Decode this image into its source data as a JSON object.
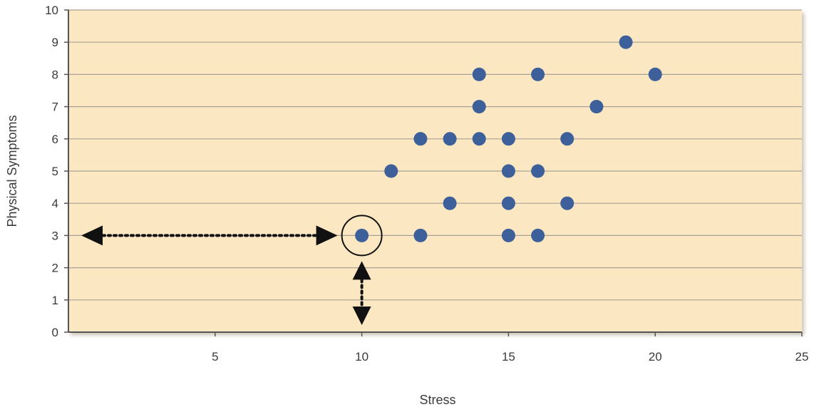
{
  "chart_data": {
    "type": "scatter",
    "title": "",
    "xlabel": "Stress",
    "ylabel": "Physical Symptoms",
    "xlim": [
      0,
      25
    ],
    "ylim": [
      0,
      10
    ],
    "x_ticks": [
      5,
      10,
      15,
      20,
      25
    ],
    "y_ticks": [
      0,
      1,
      2,
      3,
      4,
      5,
      6,
      7,
      8,
      9,
      10
    ],
    "grid": "horizontal",
    "background": "#fbe8c2",
    "point_color": "#3d5f9a",
    "points": [
      {
        "x": 10,
        "y": 3
      },
      {
        "x": 12,
        "y": 3
      },
      {
        "x": 15,
        "y": 3
      },
      {
        "x": 16,
        "y": 3
      },
      {
        "x": 13,
        "y": 4
      },
      {
        "x": 15,
        "y": 4
      },
      {
        "x": 17,
        "y": 4
      },
      {
        "x": 11,
        "y": 5
      },
      {
        "x": 15,
        "y": 5
      },
      {
        "x": 16,
        "y": 5
      },
      {
        "x": 12,
        "y": 6
      },
      {
        "x": 13,
        "y": 6
      },
      {
        "x": 14,
        "y": 6
      },
      {
        "x": 15,
        "y": 6
      },
      {
        "x": 17,
        "y": 6
      },
      {
        "x": 14,
        "y": 7
      },
      {
        "x": 18,
        "y": 7
      },
      {
        "x": 14,
        "y": 8
      },
      {
        "x": 16,
        "y": 8
      },
      {
        "x": 20,
        "y": 8
      },
      {
        "x": 19,
        "y": 9
      }
    ],
    "annotations": {
      "highlighted_point": {
        "x": 10,
        "y": 3
      },
      "horizontal_arrow": {
        "from": [
          0,
          3
        ],
        "to": [
          10,
          3
        ],
        "style": "dotted"
      },
      "vertical_arrow": {
        "from": [
          10,
          0
        ],
        "to": [
          10,
          3
        ],
        "style": "dotted"
      }
    }
  }
}
